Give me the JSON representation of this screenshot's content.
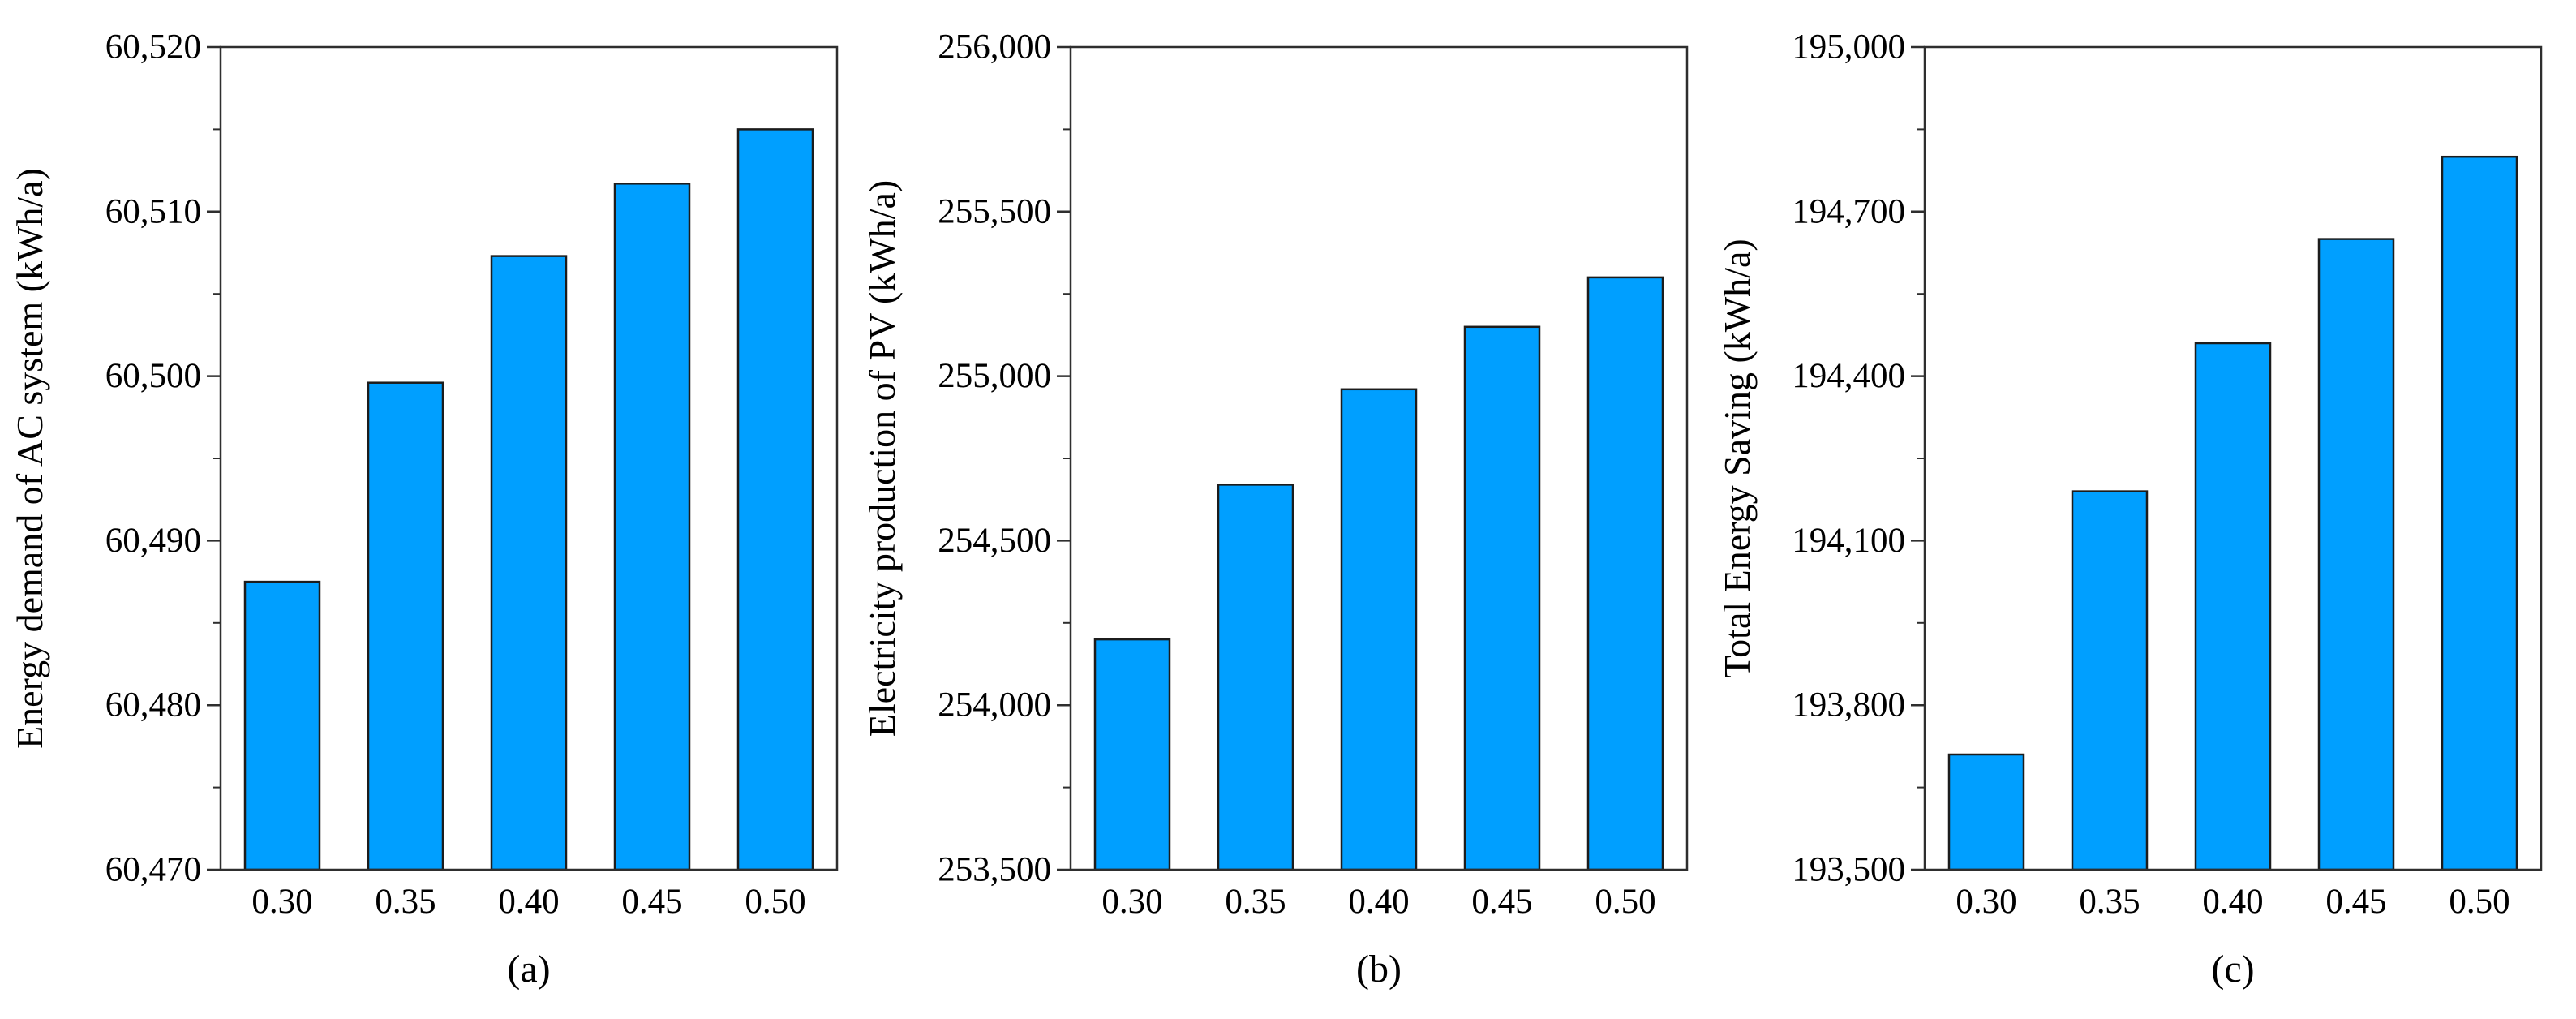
{
  "page": {
    "background": "#ffffff"
  },
  "colors": {
    "bar_fill": "#009FFF",
    "bar_edge": "#1c1c1c",
    "axis": "#2e2e2e",
    "text": "#000000"
  },
  "chart_data": [
    {
      "type": "bar",
      "caption": "(a)",
      "title": "",
      "xlabel": "",
      "ylabel": "Energy demand of AC system (kWh/a)",
      "categories": [
        "0.30",
        "0.35",
        "0.40",
        "0.45",
        "0.50"
      ],
      "values": [
        60487.5,
        60499.6,
        60507.3,
        60511.7,
        60515.0
      ],
      "ylim": [
        60470,
        60520
      ],
      "ytick_values": [
        60470,
        60480,
        60490,
        60500,
        60510,
        60520
      ],
      "ytick_labels": [
        "60,470",
        "60,480",
        "60,490",
        "60,500",
        "60,510",
        "60,520"
      ],
      "yminor_step": 5,
      "grid": false,
      "legend": "none"
    },
    {
      "type": "bar",
      "caption": "(b)",
      "title": "",
      "xlabel": "",
      "ylabel": "Electricity production of PV (kWh/a)",
      "categories": [
        "0.30",
        "0.35",
        "0.40",
        "0.45",
        "0.50"
      ],
      "values": [
        254200,
        254670,
        254960,
        255150,
        255300
      ],
      "ylim": [
        253500,
        256000
      ],
      "ytick_values": [
        253500,
        254000,
        254500,
        255000,
        255500,
        256000
      ],
      "ytick_labels": [
        "253,500",
        "254,000",
        "254,500",
        "255,000",
        "255,500",
        "256,000"
      ],
      "yminor_step": 250,
      "grid": false,
      "legend": "none"
    },
    {
      "type": "bar",
      "caption": "(c)",
      "title": "",
      "xlabel": "",
      "ylabel": "Total Energy Saving (kWh/a)",
      "categories": [
        "0.30",
        "0.35",
        "0.40",
        "0.45",
        "0.50"
      ],
      "values": [
        193710,
        194190,
        194460,
        194650,
        194800
      ],
      "ylim": [
        193500,
        195000
      ],
      "ytick_values": [
        193500,
        193800,
        194100,
        194400,
        194700,
        195000
      ],
      "ytick_labels": [
        "193,500",
        "193,800",
        "194,100",
        "194,400",
        "194,700",
        "195,000"
      ],
      "yminor_step": 150,
      "grid": false,
      "legend": "none"
    }
  ]
}
